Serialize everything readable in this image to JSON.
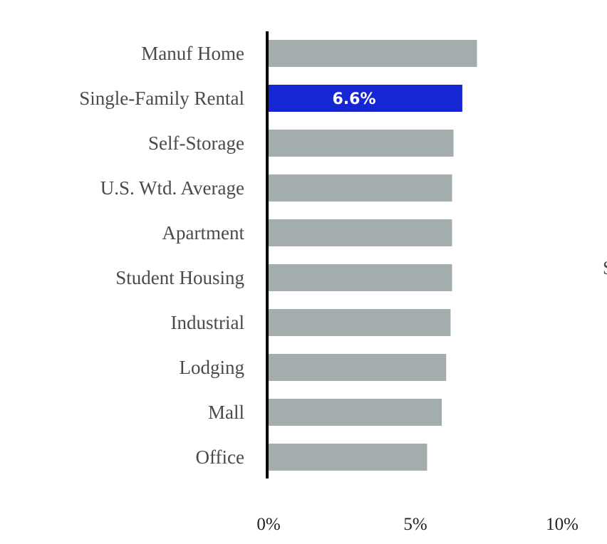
{
  "chart_data": {
    "type": "bar",
    "orientation": "horizontal",
    "categories": [
      "Manuf Home",
      "Single-Family Rental",
      "Self-Storage",
      "U.S. Wtd. Average",
      "Apartment",
      "Student Housing",
      "Industrial",
      "Lodging",
      "Mall",
      "Office"
    ],
    "values": [
      7.1,
      6.6,
      6.3,
      6.25,
      6.25,
      6.25,
      6.2,
      6.05,
      5.9,
      5.4
    ],
    "highlight_index": 1,
    "data_labels": [
      {
        "index": 1,
        "text": "6.6%"
      }
    ],
    "xlim": [
      0,
      10
    ],
    "x_ticks": [
      {
        "value": 0,
        "label": "0%"
      },
      {
        "value": 5,
        "label": "5%"
      },
      {
        "value": 10,
        "label": "10%"
      }
    ],
    "title": "",
    "xlabel": "",
    "ylabel": "",
    "grid": false,
    "colors": {
      "default_bar": "#a3adad",
      "highlight_bar": "#1726d3",
      "axis": "#000000",
      "label_text": "#4a4a4a",
      "data_label_text": "#ffffff"
    }
  },
  "edge_fragment": "S"
}
